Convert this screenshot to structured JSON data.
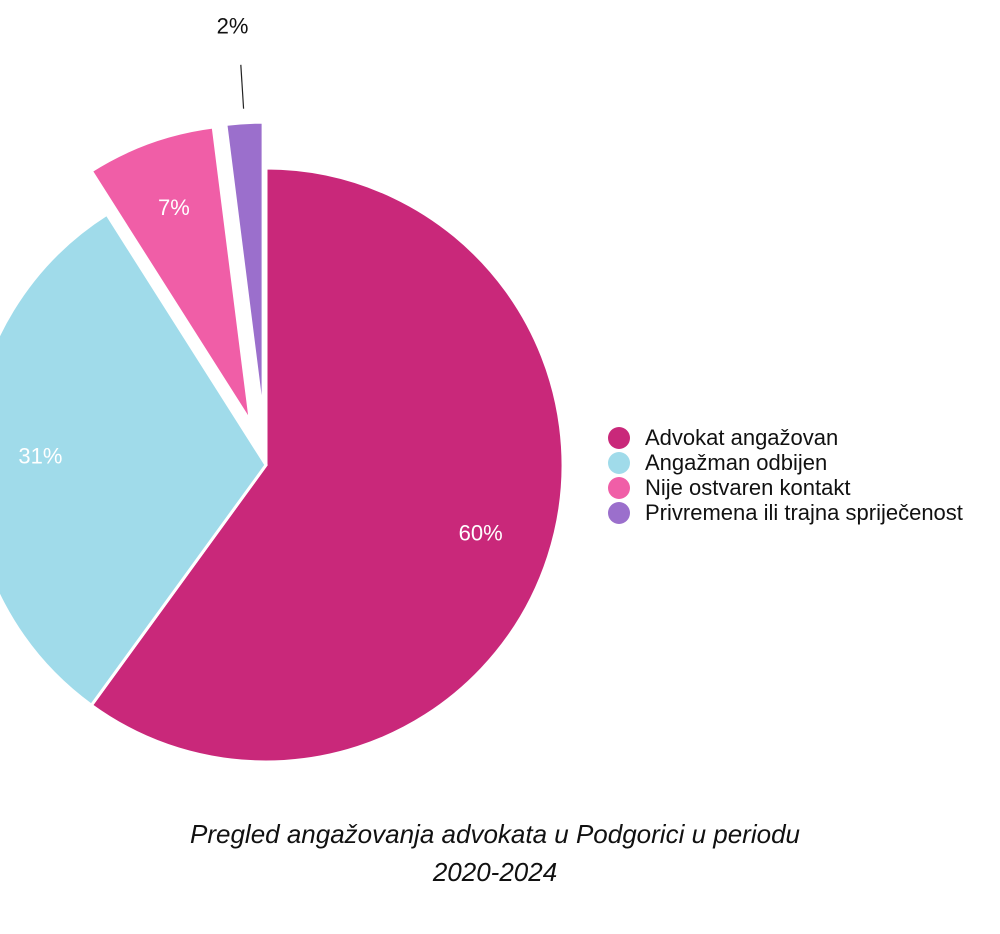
{
  "chart_data": {
    "type": "pie",
    "title": "Pregled angažovanja advokata u Podgorici u periodu 2020-2024",
    "title_lines": [
      "Pregled angažovanja advokata u Podgorici u periodu",
      "2020-2024"
    ],
    "slices": [
      {
        "label": "Advokat angažovan",
        "value": 60,
        "display": "60%",
        "color": "#c9287a",
        "exploded": false
      },
      {
        "label": "Angažman odbijen",
        "value": 31,
        "display": "31%",
        "color": "#a0dbea",
        "exploded": false
      },
      {
        "label": "Nije ostvaren kontakt",
        "value": 7,
        "display": "7%",
        "color": "#f05ea7",
        "exploded": true
      },
      {
        "label": "Privremena ili trajna spriječenost",
        "value": 2,
        "display": "2%",
        "color": "#9b6fcc",
        "exploded": true
      }
    ],
    "legend_position": "right",
    "label_text_color": "#ffffff",
    "outside_label_color": "#111111"
  }
}
